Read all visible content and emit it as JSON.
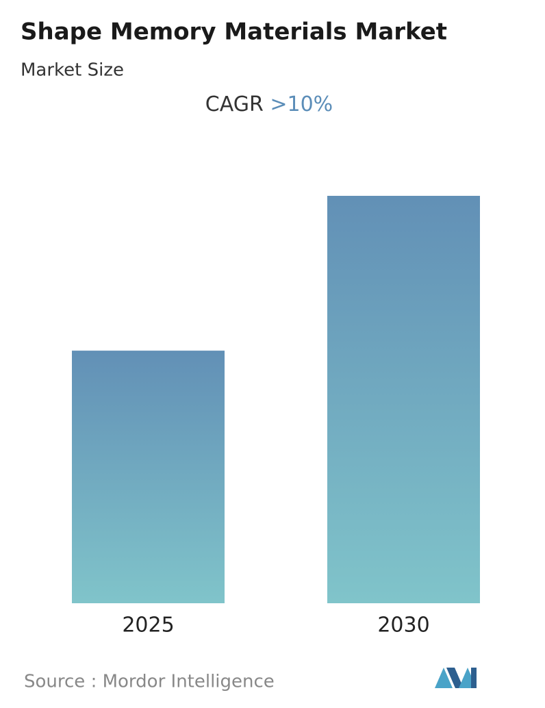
{
  "chart_data": {
    "type": "bar",
    "title": "Shape Memory Materials Market",
    "subtitle": "Market Size",
    "cagr_label": "CAGR",
    "cagr_value": ">10%",
    "categories": [
      "2025",
      "2030"
    ],
    "values": [
      62,
      100
    ],
    "ylim": [
      0,
      100
    ],
    "color": "#6a9fbf",
    "source": "Source :  Mordor Intelligence"
  }
}
